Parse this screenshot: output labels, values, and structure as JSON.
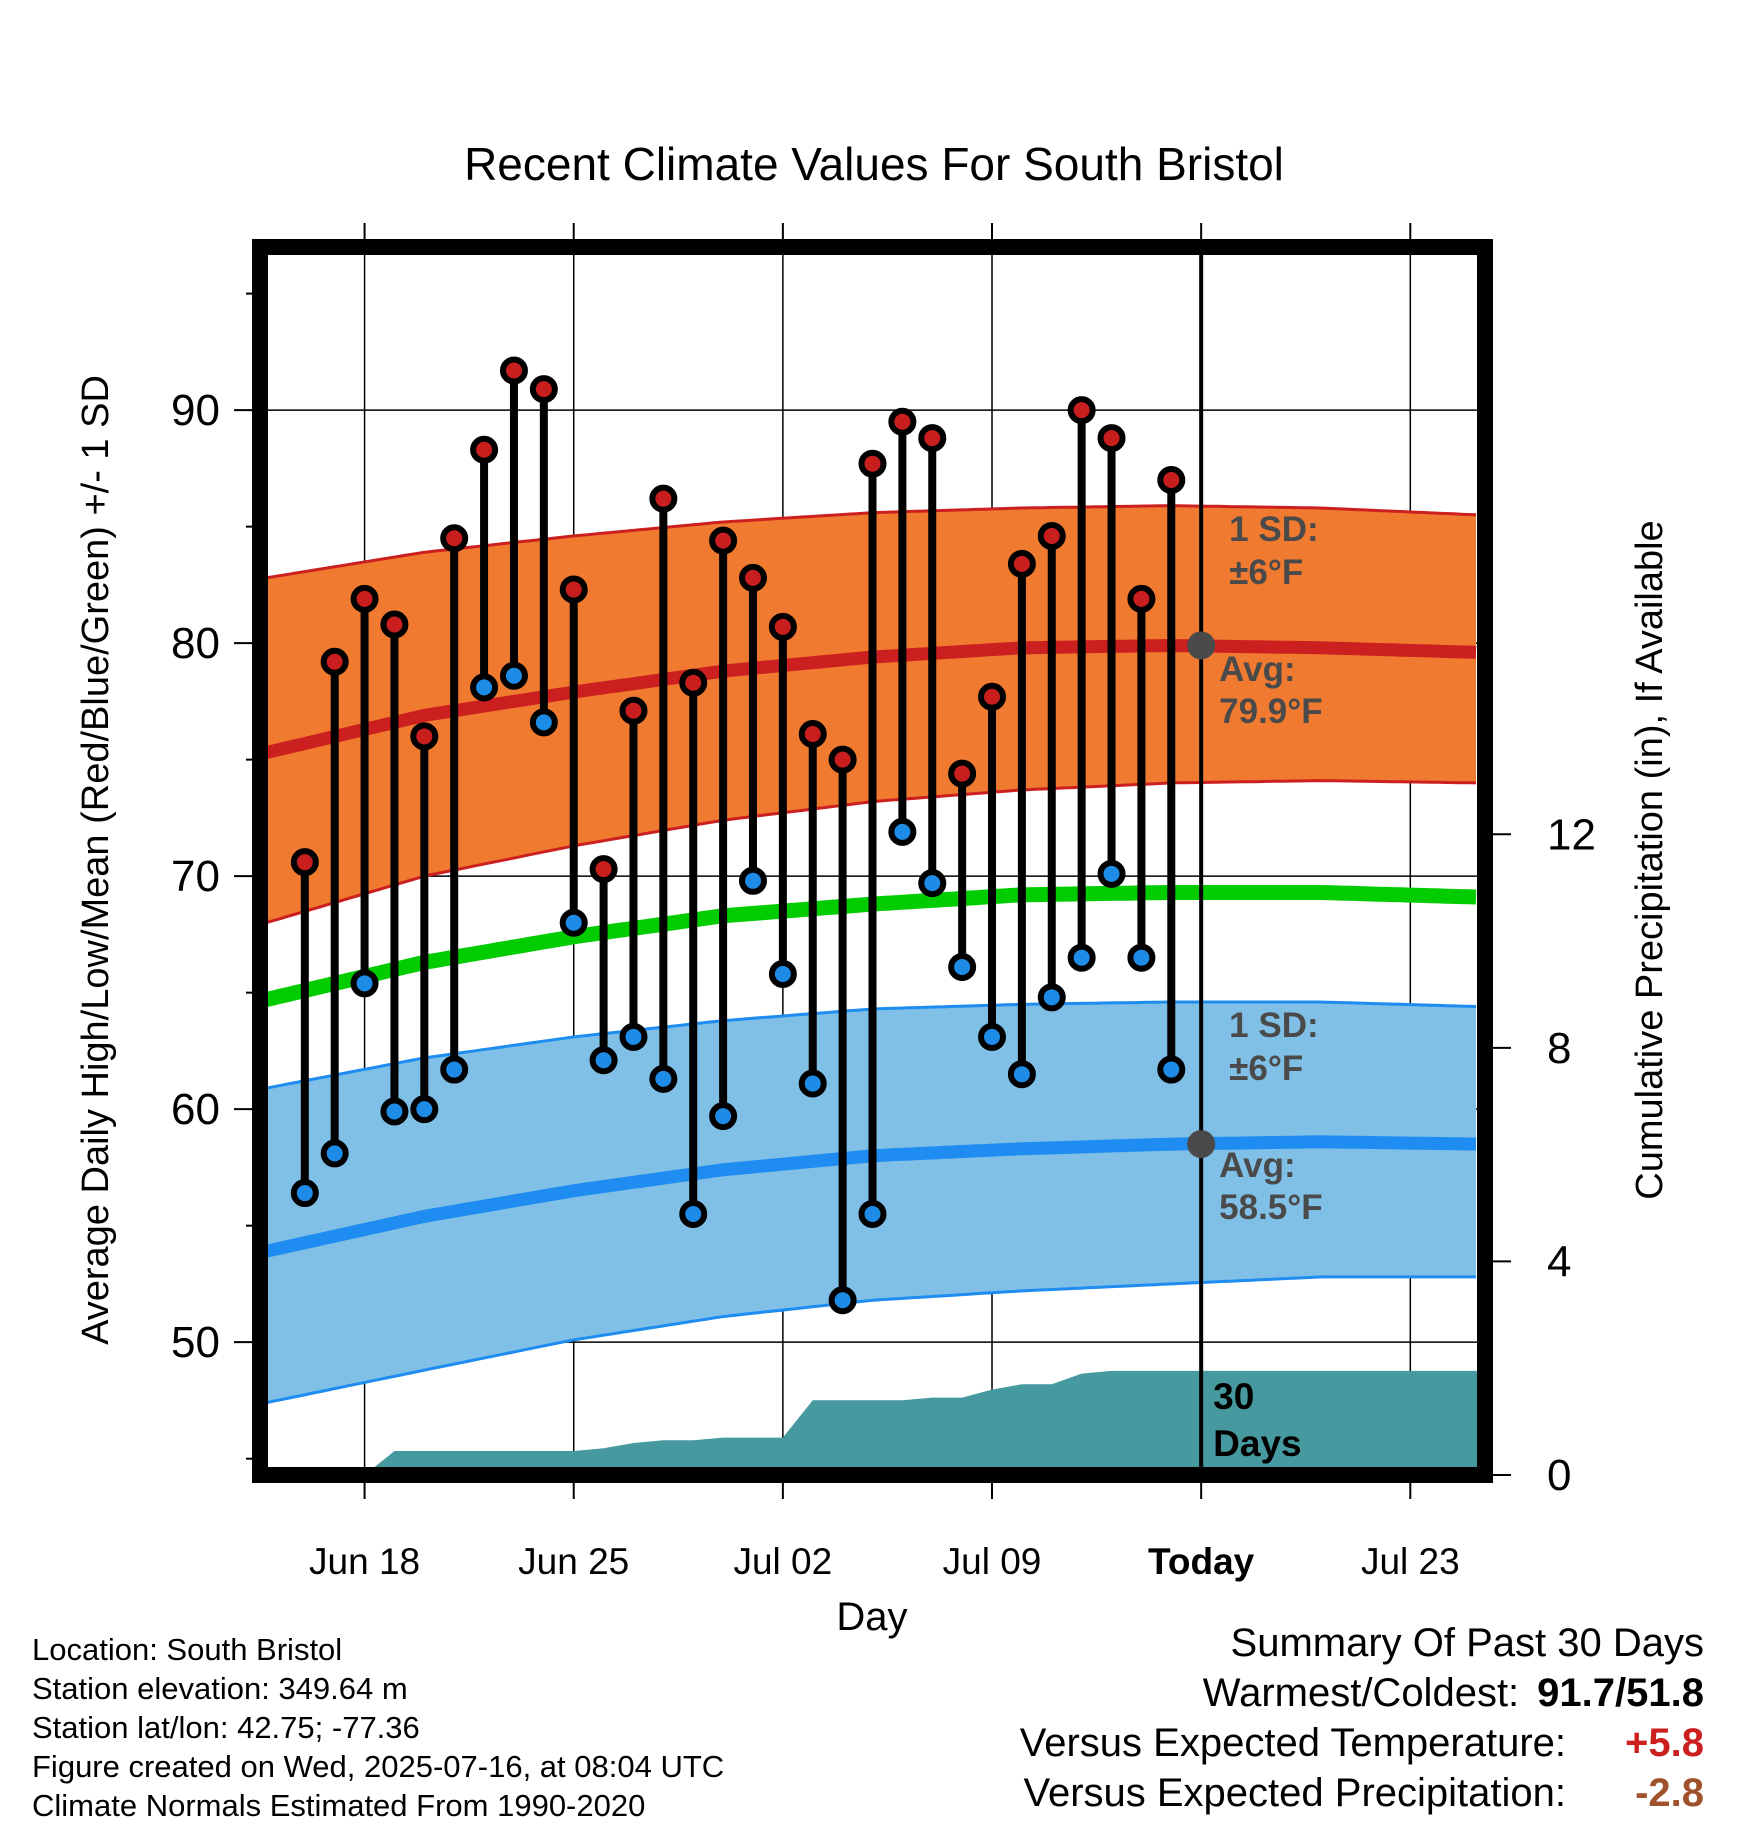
{
  "chart_data": {
    "type": "line",
    "title": "Recent Climate Values For South Bristol",
    "xlabel": "Day",
    "ylabel": "Average Daily High/Low/Mean (Red/Blue/Green) +/- 1 SD",
    "y2label": "Cumulative Precipitation (in), If Available",
    "xlim": [
      -0.5,
      40.5
    ],
    "ylim": [
      44.3,
      97
    ],
    "y2lim": [
      0,
      23
    ],
    "x_tick_positions": [
      3,
      10,
      17,
      24,
      31,
      38
    ],
    "x_tick_labels": [
      "Jun 18",
      "Jun 25",
      "Jul 02",
      "Jul 09",
      "Today",
      "Jul 23"
    ],
    "y_ticks": [
      50,
      60,
      70,
      80,
      90
    ],
    "y2_ticks": [
      0,
      4,
      8,
      12
    ],
    "today_index": 31,
    "days_label": "30\nDays",
    "daily_highs": [
      70.6,
      79.2,
      81.9,
      80.8,
      76.0,
      84.5,
      88.3,
      91.7,
      90.9,
      82.3,
      70.3,
      77.1,
      86.2,
      78.3,
      84.4,
      82.8,
      80.7,
      76.1,
      75.0,
      87.7,
      89.5,
      88.8,
      74.4,
      77.7,
      83.4,
      84.6,
      90.0,
      88.8,
      81.9,
      87.0
    ],
    "daily_lows": [
      56.4,
      58.1,
      65.4,
      59.9,
      60.0,
      61.7,
      78.1,
      78.6,
      76.6,
      68.0,
      62.1,
      63.1,
      61.3,
      55.5,
      59.7,
      69.8,
      65.8,
      61.1,
      51.8,
      55.5,
      71.9,
      69.7,
      66.1,
      63.1,
      61.5,
      64.8,
      66.5,
      70.1,
      66.5,
      61.7
    ],
    "normal_high": {
      "x": [
        -0.3,
        5,
        10,
        15,
        20,
        25,
        30,
        35,
        40.3
      ],
      "values": [
        75.3,
        76.9,
        77.9,
        78.8,
        79.4,
        79.8,
        79.9,
        79.8,
        79.6
      ]
    },
    "normal_high_sd": {
      "x": [
        -0.3,
        5,
        10,
        15,
        20,
        25,
        30,
        35,
        40.3
      ],
      "upper": [
        82.8,
        83.9,
        84.6,
        85.2,
        85.6,
        85.8,
        85.9,
        85.8,
        85.5
      ],
      "lower": [
        68.0,
        70.0,
        71.3,
        72.4,
        73.2,
        73.7,
        74.0,
        74.1,
        74.0
      ]
    },
    "normal_mean": {
      "x": [
        -0.3,
        5,
        10,
        15,
        20,
        25,
        30,
        35,
        40.3
      ],
      "values": [
        64.7,
        66.3,
        67.4,
        68.3,
        68.8,
        69.2,
        69.3,
        69.3,
        69.1
      ]
    },
    "normal_low": {
      "x": [
        -0.3,
        5,
        10,
        15,
        20,
        25,
        30,
        35,
        40.3
      ],
      "values": [
        53.9,
        55.4,
        56.5,
        57.4,
        58.0,
        58.3,
        58.5,
        58.6,
        58.5
      ]
    },
    "normal_low_sd": {
      "x": [
        -0.3,
        5,
        10,
        15,
        20,
        25,
        30,
        35,
        40.3
      ],
      "upper": [
        60.9,
        62.2,
        63.1,
        63.8,
        64.3,
        64.5,
        64.6,
        64.6,
        64.4
      ],
      "lower": [
        47.4,
        48.8,
        50.1,
        51.1,
        51.8,
        52.2,
        52.5,
        52.8,
        52.8
      ]
    },
    "precip_cumulative": {
      "x": [
        3,
        4,
        8,
        9,
        10,
        11,
        12,
        13,
        14,
        15,
        16,
        17,
        18,
        19,
        20,
        21,
        22,
        23,
        24,
        25,
        26,
        27,
        28,
        29,
        30,
        31,
        40.3
      ],
      "values": [
        0.0,
        0.45,
        0.45,
        0.45,
        0.45,
        0.5,
        0.6,
        0.65,
        0.65,
        0.7,
        0.7,
        0.7,
        1.4,
        1.4,
        1.4,
        1.4,
        1.45,
        1.45,
        1.6,
        1.7,
        1.7,
        1.9,
        1.95,
        1.95,
        1.95,
        1.95,
        1.95
      ]
    },
    "annotations": {
      "high_sd_label": "1 SD:",
      "high_sd_value": "±6°F",
      "high_avg_label": "Avg:",
      "high_avg_value": "79.9°F",
      "high_avg_today": 79.9,
      "low_sd_label": "1 SD:",
      "low_sd_value": "±6°F",
      "low_avg_label": "Avg:",
      "low_avg_value": "58.5°F",
      "low_avg_today": 58.5
    },
    "grid": true,
    "colors": {
      "high_band": "#f07a2f",
      "high_line": "#cc2020",
      "low_band": "#80c0e6",
      "low_line": "#1e8cf0",
      "mean_line": "#00cc00",
      "precip": "#45999f",
      "high_dot": "#c81e1e",
      "low_dot": "#1e8ce6",
      "today_dot": "#4a4a4a",
      "annotation": "#4a4a4a"
    }
  },
  "info": {
    "location": "Location: South Bristol",
    "elevation": "Station elevation: 349.64 m",
    "latlon": "Station lat/lon: 42.75; -77.36",
    "created": "Figure created on Wed, 2025-07-16, at 08:04 UTC",
    "normals": "Climate Normals Estimated From 1990-2020"
  },
  "summary": {
    "title": "Summary Of Past 30 Days",
    "warmest_label": "Warmest/Coldest:",
    "warmest_value": "91.7/51.8",
    "temp_label": "Versus Expected Temperature:",
    "temp_value": "+5.8",
    "temp_color": "#cc2020",
    "precip_label": "Versus Expected Precipitation:",
    "precip_value": "-2.8",
    "precip_color": "#a0522d"
  }
}
